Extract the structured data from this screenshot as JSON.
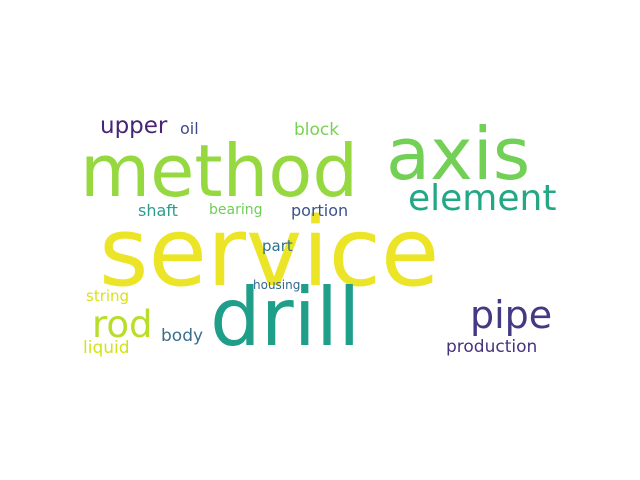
{
  "words": [
    {
      "id": "service",
      "text": "service",
      "color": "#ece426"
    },
    {
      "id": "drill",
      "text": "drill",
      "color": "#1f9e89"
    },
    {
      "id": "method",
      "text": "method",
      "color": "#95d840"
    },
    {
      "id": "axis",
      "text": "axis",
      "color": "#73d056"
    },
    {
      "id": "element",
      "text": "element",
      "color": "#22a884"
    },
    {
      "id": "pipe",
      "text": "pipe",
      "color": "#443983"
    },
    {
      "id": "rod",
      "text": "rod",
      "color": "#b8de29"
    },
    {
      "id": "upper",
      "text": "upper",
      "color": "#482475"
    },
    {
      "id": "oil",
      "text": "oil",
      "color": "#3e4a89"
    },
    {
      "id": "block",
      "text": "block",
      "color": "#7ad151"
    },
    {
      "id": "shaft",
      "text": "shaft",
      "color": "#2a9d8f"
    },
    {
      "id": "bearing",
      "text": "bearing",
      "color": "#6ece58"
    },
    {
      "id": "portion",
      "text": "portion",
      "color": "#3b528b"
    },
    {
      "id": "part",
      "text": "part",
      "color": "#2c728e"
    },
    {
      "id": "housing",
      "text": "housing",
      "color": "#31688e"
    },
    {
      "id": "string",
      "text": "string",
      "color": "#d8e219"
    },
    {
      "id": "body",
      "text": "body",
      "color": "#3b6e8c"
    },
    {
      "id": "liquid",
      "text": "liquid",
      "color": "#d2e21b"
    },
    {
      "id": "production",
      "text": "production",
      "color": "#46337e"
    }
  ]
}
